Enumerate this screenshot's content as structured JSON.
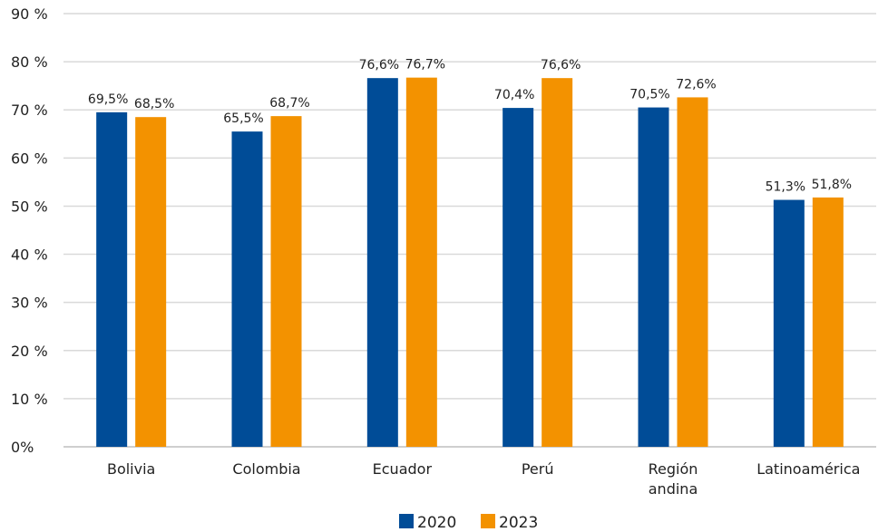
{
  "chart_data": {
    "type": "bar",
    "title": "",
    "xlabel": "",
    "ylabel": "",
    "ylim": [
      0,
      90
    ],
    "grid": true,
    "legend_placement": "bottom-center",
    "y_ticks": [
      {
        "value": 0,
        "label": "0%"
      },
      {
        "value": 10,
        "label": "10 %"
      },
      {
        "value": 20,
        "label": "20 %"
      },
      {
        "value": 30,
        "label": "30 %"
      },
      {
        "value": 40,
        "label": "40 %"
      },
      {
        "value": 50,
        "label": "50 %"
      },
      {
        "value": 60,
        "label": "60 %"
      },
      {
        "value": 70,
        "label": "70 %"
      },
      {
        "value": 80,
        "label": "80  %"
      },
      {
        "value": 90,
        "label": "90 %"
      }
    ],
    "categories": [
      [
        "Bolivia"
      ],
      [
        "Colombia"
      ],
      [
        "Ecuador"
      ],
      [
        "Perú"
      ],
      [
        "Región",
        "andina"
      ],
      [
        "Latinoamérica"
      ]
    ],
    "series": [
      {
        "name": "2020",
        "color": "#004C97",
        "values": [
          69.5,
          65.5,
          76.6,
          70.4,
          70.5,
          51.3
        ],
        "labels": [
          "69,5%",
          "65,5%",
          "76,6%",
          "70,4%",
          "70,5%",
          "51,3%"
        ]
      },
      {
        "name": "2023",
        "color": "#F39200",
        "values": [
          68.5,
          68.7,
          76.7,
          76.6,
          72.6,
          51.8
        ],
        "labels": [
          "68,5%",
          "68,7%",
          "76,7%",
          "76,6%",
          "72,6%",
          "51,8%"
        ]
      }
    ]
  }
}
